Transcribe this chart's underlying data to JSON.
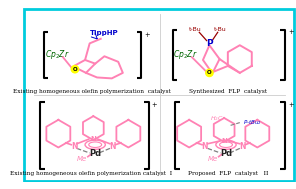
{
  "bg_color": "#ffffff",
  "border_color": "#00ccdd",
  "pink": "#ff82b4",
  "yellow": "#ffff00",
  "blue_label": "#0000cc",
  "dark_red": "#990000",
  "green": "#006600",
  "dark_gray": "#222222",
  "caption_top_left": "Existing homogeneous olefin polymerization  catalyst",
  "caption_top_right": "Synthesized  FLP  catalyst",
  "caption_bot_left": "Existing homogeneous olefin polymerization catalyst  I",
  "caption_bot_right": "Proposed  FLP  catalyst   II",
  "font_size_caption": 4.2,
  "font_family": "DejaVu Serif"
}
